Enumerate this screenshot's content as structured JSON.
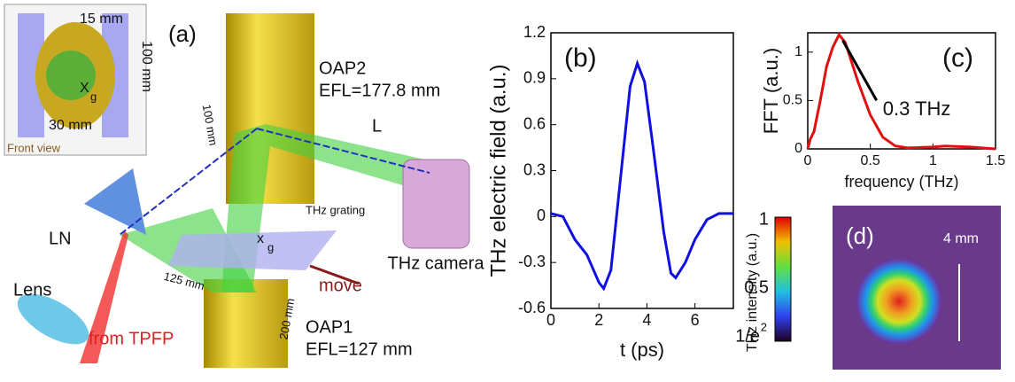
{
  "chart_data": [
    {
      "type": "line",
      "panel_label": "(b)",
      "ylabel": "THz electric field (a.u.)",
      "xlabel": "t (ps)",
      "color": "#1010e0",
      "x": [
        0,
        0.5,
        1,
        1.5,
        2,
        2.2,
        2.5,
        3,
        3.3,
        3.6,
        3.9,
        4.3,
        4.7,
        5.0,
        5.2,
        5.6,
        6,
        6.5,
        7,
        7.6
      ],
      "values": [
        0.02,
        0,
        -0.15,
        -0.25,
        -0.43,
        -0.47,
        -0.35,
        0.4,
        0.85,
        1.0,
        0.88,
        0.4,
        -0.1,
        -0.37,
        -0.4,
        -0.3,
        -0.15,
        -0.02,
        0.02,
        0.02
      ],
      "xlim": [
        0,
        7.6
      ],
      "ylim": [
        -0.6,
        1.2
      ],
      "xticks": [
        0,
        2,
        4,
        6
      ],
      "yticks": [
        -0.6,
        -0.3,
        0,
        0.3,
        0.6,
        0.9,
        1.2
      ]
    },
    {
      "type": "line",
      "panel_label": "(c)",
      "ylabel": "FFT (a.u.)",
      "xlabel": "frequency (THz)",
      "color": "#e01010",
      "annotation": "0.3 THz",
      "x": [
        0,
        0.02,
        0.05,
        0.1,
        0.15,
        0.2,
        0.25,
        0.3,
        0.4,
        0.5,
        0.6,
        0.7,
        0.8,
        1.0,
        1.1,
        1.3,
        1.5
      ],
      "values": [
        0,
        0.1,
        0.18,
        0.5,
        0.85,
        1.05,
        1.18,
        1.1,
        0.7,
        0.35,
        0.12,
        0.03,
        0.01,
        0.02,
        0.03,
        0.02,
        0
      ],
      "xlim": [
        0,
        1.5
      ],
      "ylim": [
        0,
        1.2
      ],
      "xticks": [
        0,
        0.5,
        1,
        1.5
      ],
      "yticks": [
        0,
        0.5,
        1
      ]
    }
  ],
  "panel_a": {
    "label": "(a)",
    "inset_width": "15 mm",
    "inset_height": "100 mm",
    "inset_bottom": "30 mm",
    "inset_x": "X",
    "inset_g": "g",
    "front_view": "Front view",
    "oap2": "OAP2",
    "oap2_efl": "EFL=177.8 mm",
    "dist_100": "100 mm",
    "dist_l": "L",
    "grating": "THz grating",
    "grating_x": "x",
    "grating_g": "g",
    "ln": "LN",
    "dist_125": "125 mm",
    "move": "move",
    "lens": "Lens",
    "source": "from TPFP",
    "oap1": "OAP1",
    "oap1_efl": "EFL=127 mm",
    "dist_200": "200 mm",
    "camera": "THz camera"
  },
  "panel_d": {
    "label": "(d)",
    "colorbar_label": "THz intensity (a.u.)",
    "tick_top": "1",
    "tick_mid": "0.5",
    "tick_bottom": "1/e",
    "tick_bottom_sup": "2",
    "scale": "4 mm"
  }
}
